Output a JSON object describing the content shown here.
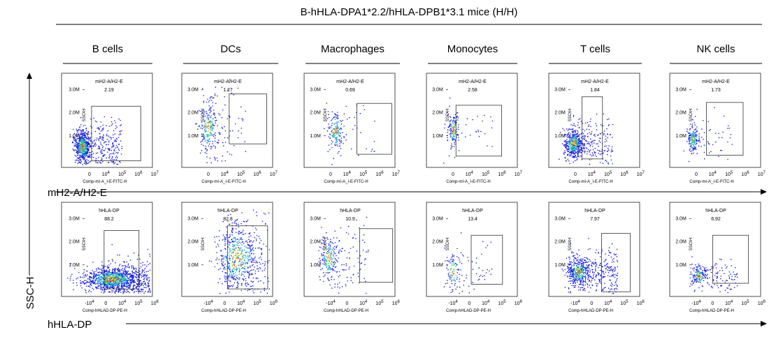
{
  "title": "B-hHLA-DPA1*2.2/hHLA-DPB1*3.1 mice (H/H)",
  "row_labels": [
    "mH2-A/H2-E",
    "hHLA-DP"
  ],
  "y_axis_label": "SSC-H",
  "panel_y_label": "SSC-H",
  "y_ticks": [
    "1.0M",
    "2.0M",
    "3.0M"
  ],
  "x_ticks_row1": [
    "0",
    "10^4",
    "10^5",
    "10^6",
    "10^7"
  ],
  "x_ticks_row2": [
    "-10^4",
    "0",
    "10^4",
    "10^5",
    "10^6"
  ],
  "cell_types": [
    "B cells",
    "DCs",
    "Macrophages",
    "Monocytes",
    "T cells",
    "NK cells"
  ],
  "colors": {
    "axis": "#000000",
    "gate": "#333333"
  },
  "chart_data": [
    {
      "type": "scatter",
      "row_label": "mH2-A/H2-E",
      "gate_label": "mH2-A/H2-E",
      "ylabel": "SSC-H",
      "panels": [
        {
          "cell_type": "B cells",
          "xlabel": "Comp-mI-A_I-E-FITC-H",
          "gate_percent": "2.19"
        },
        {
          "cell_type": "DCs",
          "xlabel": "Comp-mI-A_I-E-FITC-H",
          "gate_percent": "1.27"
        },
        {
          "cell_type": "Macrophages",
          "xlabel": "Comp-mI-A_I-E-FITC-H",
          "gate_percent": "0.69"
        },
        {
          "cell_type": "Monocytes",
          "xlabel": "Comp-mI-A_I-E-FITC-H",
          "gate_percent": "2.58"
        },
        {
          "cell_type": "T cells",
          "xlabel": "Comp-mI-A_I-E-FITC-H",
          "gate_percent": "1.84"
        },
        {
          "cell_type": "NK cells",
          "xlabel": "Comp-mI-A_I-E-FITC-H",
          "gate_percent": "1.73"
        }
      ]
    },
    {
      "type": "scatter",
      "row_label": "hHLA-DP",
      "gate_label": "hHLA-DP",
      "ylabel": "SSC-H",
      "panels": [
        {
          "cell_type": "B cells",
          "xlabel": "Comp-hHLAD-DP-PE-H",
          "gate_percent": "88.2"
        },
        {
          "cell_type": "DCs",
          "xlabel": "Comp-hHLAD-DP-PE-H",
          "gate_percent": "82.8"
        },
        {
          "cell_type": "Macrophages",
          "xlabel": "Comp-hHLAD-DP-PE-H",
          "gate_percent": "10.9"
        },
        {
          "cell_type": "Monocytes",
          "xlabel": "Comp-hHLAD-DP-PE-H",
          "gate_percent": "13.4"
        },
        {
          "cell_type": "T cells",
          "xlabel": "Comp-hHLAD-DP-PE-H",
          "gate_percent": "7.97"
        },
        {
          "cell_type": "NK cells",
          "xlabel": "Comp-hHLAD-DP-PE-H",
          "gate_percent": "6.92"
        }
      ]
    }
  ]
}
